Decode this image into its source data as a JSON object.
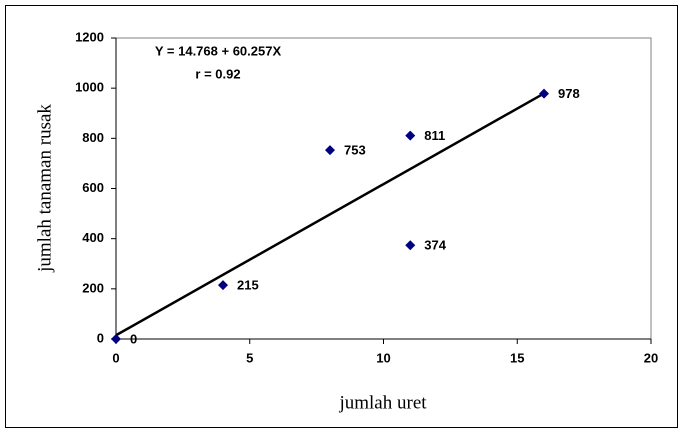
{
  "chart_data": {
    "type": "scatter",
    "xlabel": "jumlah uret",
    "ylabel": "jumlah tanaman rusak",
    "annotations": [
      "Y = 14.768 + 60.257X",
      "r = 0.92"
    ],
    "series": [
      {
        "color": "#000080",
        "x": [
          0,
          4,
          8,
          11,
          11,
          16
        ],
        "values": [
          0,
          215,
          753,
          811,
          374,
          978
        ]
      }
    ],
    "trendline": {
      "color": "#000000",
      "x": [
        0,
        16
      ],
      "values": [
        15,
        979
      ]
    },
    "xlim": [
      0,
      20
    ],
    "xticks": [
      0,
      5,
      10,
      15,
      20
    ],
    "ylim": [
      0,
      1200
    ],
    "yticks": [
      0,
      200,
      400,
      600,
      800,
      1000,
      1200
    ]
  }
}
